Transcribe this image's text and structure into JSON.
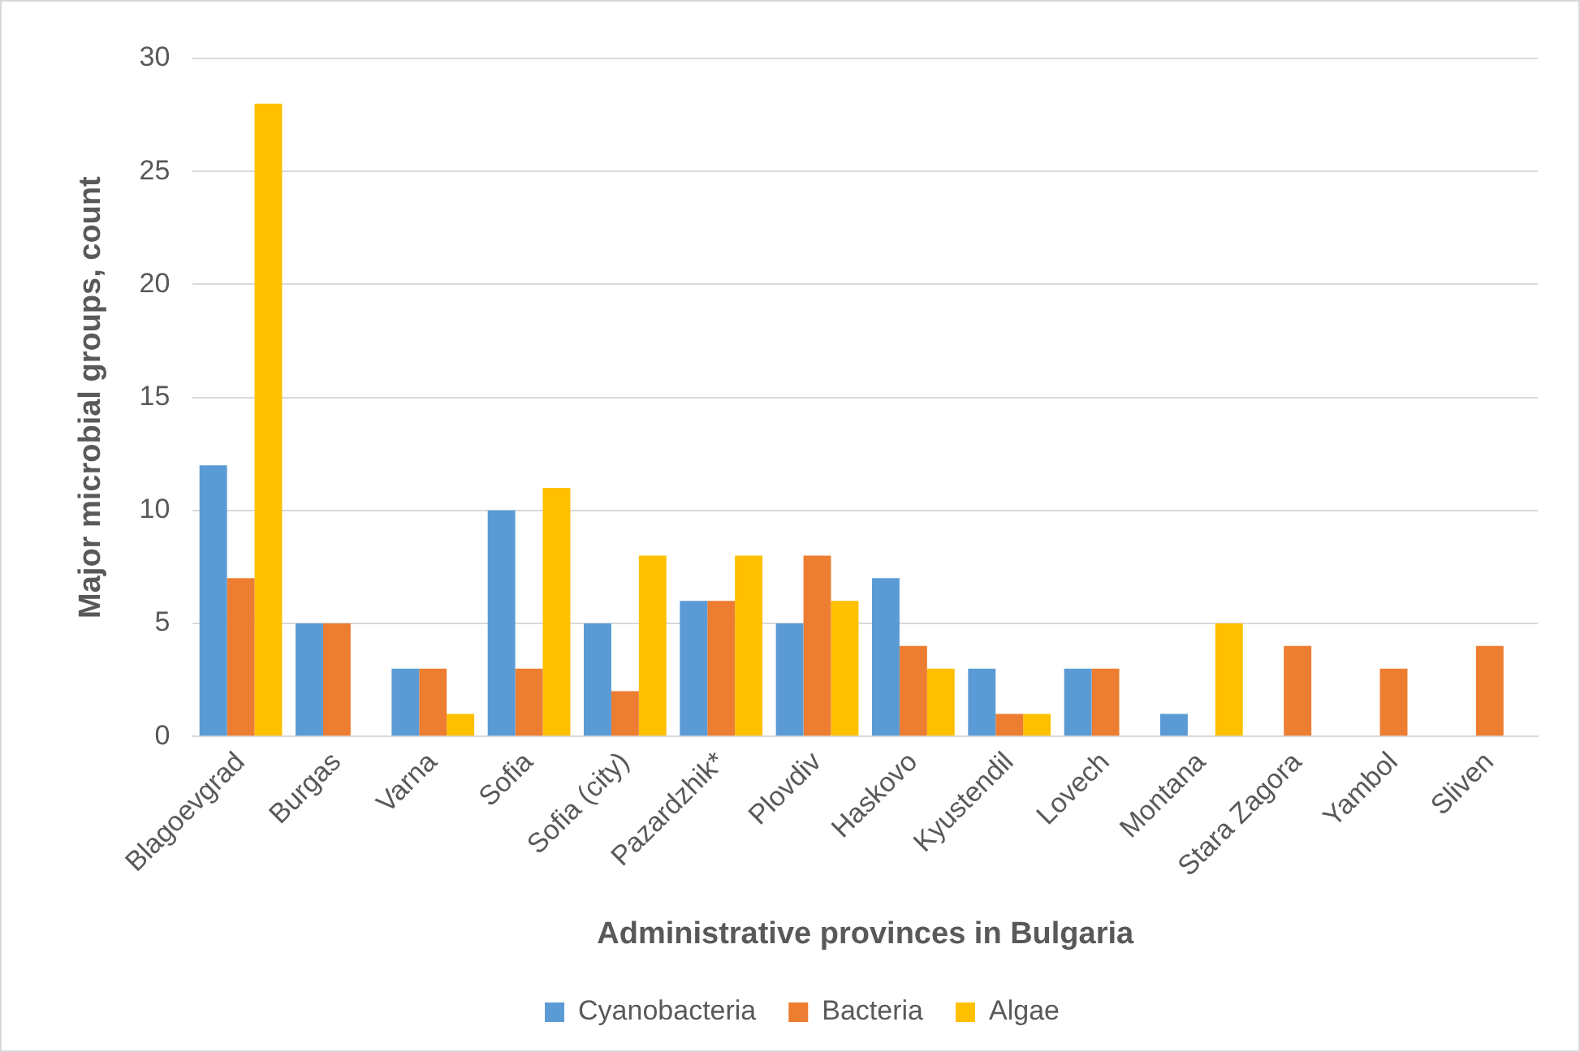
{
  "chart_data": {
    "type": "bar",
    "xlabel": "Administrative provinces in Bulgaria",
    "ylabel": "Major microbial groups, count",
    "categories": [
      "Blagoevgrad",
      "Burgas",
      "Varna",
      "Sofia",
      "Sofia (city)",
      "Pazardzhik*",
      "Plovdiv",
      "Haskovo",
      "Kyustendil",
      "Lovech",
      "Montana",
      "Stara Zagora",
      "Yambol",
      "Sliven"
    ],
    "series": [
      {
        "name": "Cyanobacteria",
        "color": "#5b9bd5",
        "values": [
          12,
          5,
          3,
          10,
          5,
          6,
          5,
          7,
          3,
          3,
          1,
          0,
          0,
          0
        ]
      },
      {
        "name": "Bacteria",
        "color": "#ed7d31",
        "values": [
          7,
          5,
          3,
          3,
          2,
          6,
          8,
          4,
          1,
          3,
          0,
          4,
          3,
          4
        ]
      },
      {
        "name": "Algae",
        "color": "#ffc000",
        "values": [
          28,
          0,
          1,
          11,
          8,
          8,
          6,
          3,
          1,
          0,
          5,
          0,
          0,
          0
        ]
      }
    ],
    "ylim": [
      0,
      30
    ],
    "yticks": [
      0,
      5,
      10,
      15,
      20,
      25,
      30
    ],
    "grid": "y",
    "legend": "bottom"
  }
}
